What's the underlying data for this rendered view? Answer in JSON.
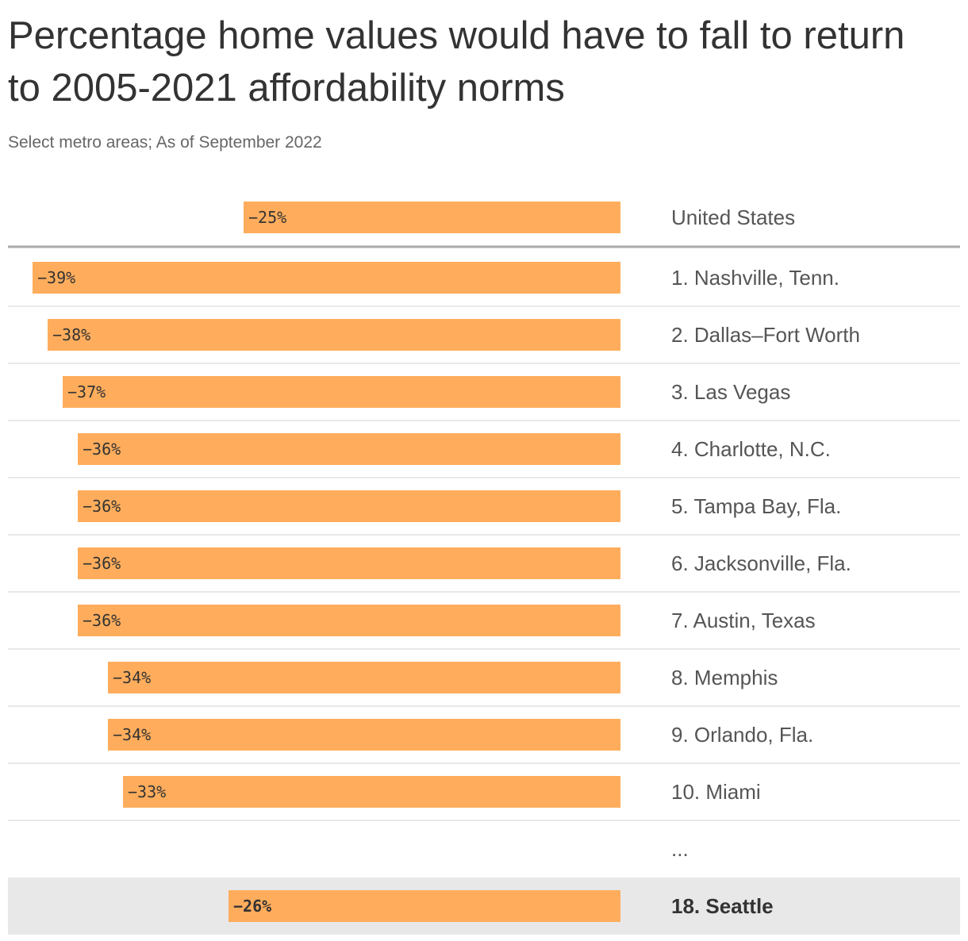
{
  "title": "Percentage home values would have to fall to return to 2005-2021 affordability norms",
  "subtitle": "Select metro areas; As of September 2022",
  "chart_data": {
    "type": "bar",
    "orientation": "horizontal",
    "direction": "negative-left",
    "color": "#FFAD5C",
    "highlight_bg": "#e8e8e8",
    "value_suffix": "%",
    "grid": false,
    "legend": "none",
    "summary": {
      "label": "United States",
      "value": -25
    },
    "rows": [
      {
        "label": "1. Nashville, Tenn.",
        "value": -39
      },
      {
        "label": "2. Dallas–Fort Worth",
        "value": -38
      },
      {
        "label": "3. Las Vegas",
        "value": -37
      },
      {
        "label": "4. Charlotte, N.C.",
        "value": -36
      },
      {
        "label": "5. Tampa Bay, Fla.",
        "value": -36
      },
      {
        "label": "6. Jacksonville, Fla.",
        "value": -36
      },
      {
        "label": "7. Austin, Texas",
        "value": -36
      },
      {
        "label": "8. Memphis",
        "value": -34
      },
      {
        "label": "9. Orlando, Fla.",
        "value": -34
      },
      {
        "label": "10. Miami",
        "value": -33
      }
    ],
    "ellipsis": "...",
    "highlight": {
      "label": "18. Seattle",
      "value": -26
    }
  }
}
